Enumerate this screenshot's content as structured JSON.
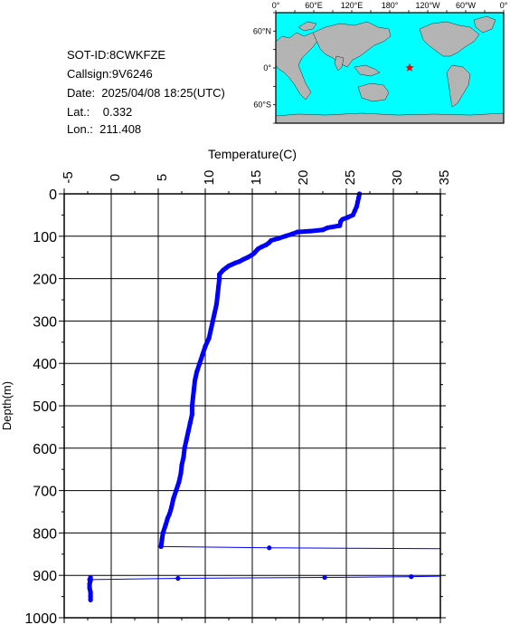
{
  "info": {
    "sot_id": "SOT-ID:8CWKFZE",
    "callsign": "Callsign:9V6246",
    "date": "Date:  2025/04/08 18:25(UTC)",
    "lat": "Lat.:    0.332",
    "lon": "Lon.:  211.408"
  },
  "map": {
    "lon_labels": [
      "0°",
      "60°E",
      "120°E",
      "180°",
      "120°W",
      "60°W",
      "0°"
    ],
    "lat_labels": [
      "60°N",
      "0°",
      "60°S"
    ],
    "ocean_color": "#00ffff",
    "land_color": "#b4b4b4",
    "marker": {
      "lat": 0.332,
      "lon": 211.408,
      "color": "#ff0000",
      "symbol": "star"
    }
  },
  "chart_data": {
    "type": "scatter",
    "title": "",
    "xlabel": "Temperature(C)",
    "ylabel": "Depth(m)",
    "xlim": [
      -5,
      35
    ],
    "ylim": [
      0,
      1000
    ],
    "y_inverted": true,
    "x_axis_position": "top",
    "x_ticks": [
      "-5",
      "0",
      "5",
      "10",
      "15",
      "20",
      "25",
      "30",
      "35"
    ],
    "y_ticks": [
      "0",
      "100",
      "200",
      "300",
      "400",
      "500",
      "600",
      "700",
      "800",
      "900",
      "1000"
    ],
    "grid": true,
    "series_color": "#0000ff",
    "profile": {
      "temperature": [
        26.4,
        26.3,
        26.2,
        26.1,
        25.9,
        25.7,
        25.2,
        24.6,
        24.4,
        24.3,
        23.0,
        22.5,
        21.2,
        19.8,
        19.2,
        18.5,
        17.8,
        17.0,
        16.8,
        16.5,
        16.0,
        15.6,
        15.4,
        15.2,
        14.9,
        14.5,
        14.0,
        13.6,
        13.2,
        12.9,
        12.5,
        12.2,
        11.9,
        11.7,
        11.5,
        11.5,
        11.4,
        11.3,
        11.2,
        11.0,
        10.8,
        10.6,
        10.4,
        10.0,
        9.7,
        9.4,
        9.1,
        8.9,
        8.8,
        8.7,
        8.6,
        8.6,
        8.4,
        8.2,
        8.0,
        7.8,
        7.7,
        7.5,
        7.4,
        7.2,
        6.9,
        6.6,
        6.4,
        6.2,
        6.0,
        5.8,
        5.5,
        5.4,
        5.3
      ],
      "depth": [
        0,
        10,
        20,
        30,
        40,
        50,
        55,
        60,
        65,
        75,
        80,
        85,
        88,
        90,
        95,
        100,
        105,
        110,
        115,
        120,
        125,
        130,
        135,
        140,
        145,
        150,
        155,
        160,
        163,
        166,
        170,
        175,
        180,
        185,
        190,
        200,
        220,
        240,
        260,
        280,
        300,
        320,
        340,
        360,
        380,
        400,
        420,
        440,
        460,
        480,
        500,
        520,
        540,
        560,
        580,
        600,
        620,
        640,
        660,
        680,
        700,
        720,
        740,
        755,
        765,
        780,
        800,
        815,
        832
      ]
    },
    "spikes": [
      {
        "temperature": [
          5.3,
          16.8,
          35.0
        ],
        "depth": [
          832,
          835,
          837
        ]
      },
      {
        "temperature": [
          -2.3,
          7.1,
          22.7,
          31.9,
          35.0
        ],
        "depth": [
          910,
          907,
          905,
          903,
          902
        ]
      }
    ],
    "bottom_points": {
      "temperature": [
        -2.2,
        -2.2,
        -2.3,
        -2.3,
        -2.2,
        -2.2,
        -2.2
      ],
      "depth": [
        905,
        912,
        920,
        930,
        940,
        950,
        958
      ]
    }
  }
}
